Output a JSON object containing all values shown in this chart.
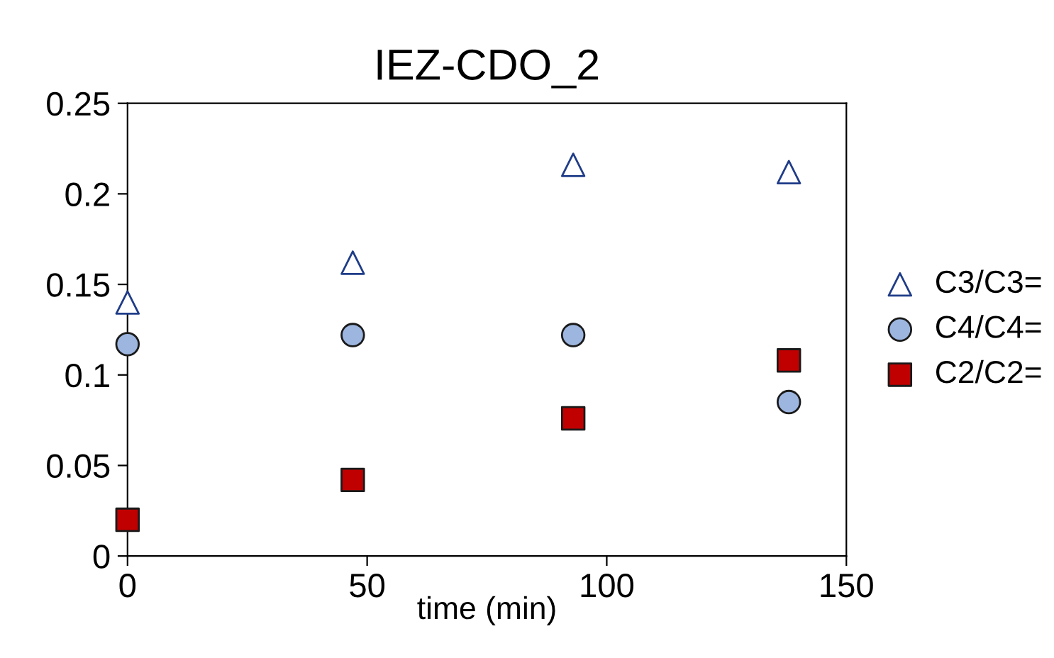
{
  "chart_data": {
    "type": "scatter",
    "title": "IEZ-CDO_2",
    "xlabel": "time (min)",
    "series": [
      {
        "name": "C3/C3=",
        "color": "#1f3c88",
        "marker": "triangle",
        "x": [
          0,
          47,
          93,
          138
        ],
        "values": [
          0.14,
          0.162,
          0.216,
          0.212
        ]
      },
      {
        "name": "C4/C4=",
        "color": "#9db6e0",
        "marker": "circle",
        "x": [
          0,
          47,
          93,
          138
        ],
        "values": [
          0.117,
          0.122,
          0.122,
          0.085
        ]
      },
      {
        "name": "C2/C2=",
        "color": "#c00000",
        "marker": "square",
        "x": [
          0,
          47,
          93,
          138
        ],
        "values": [
          0.02,
          0.042,
          0.076,
          0.108
        ]
      }
    ],
    "xlim": [
      0,
      150
    ],
    "xticks": [
      0,
      50,
      100,
      150
    ],
    "ylim": [
      0,
      0.25
    ],
    "yticks": [
      0,
      0.05,
      0.1,
      0.15,
      0.2,
      0.25
    ],
    "grid": false,
    "legend": "right"
  }
}
